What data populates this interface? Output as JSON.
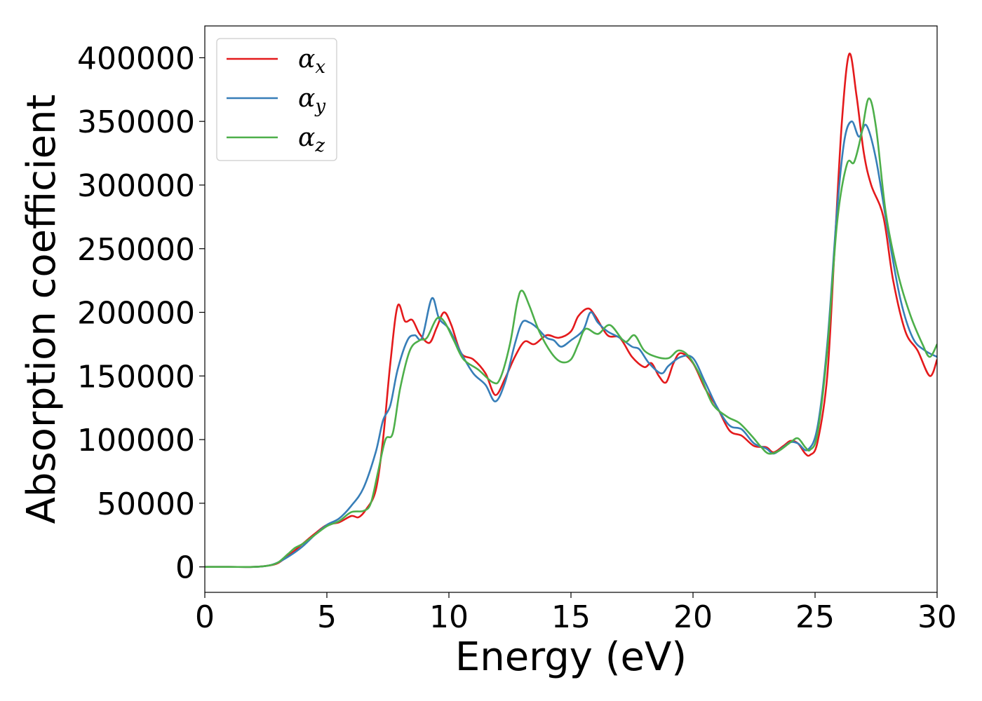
{
  "chart_data": {
    "type": "line",
    "title": "",
    "xlabel": "Energy (eV)",
    "ylabel": "Absorption coefficient",
    "xlim": [
      0,
      30
    ],
    "ylim": [
      -20000,
      425000
    ],
    "xticks": [
      0,
      5,
      10,
      15,
      20,
      25,
      30
    ],
    "yticks": [
      0,
      50000,
      100000,
      150000,
      200000,
      250000,
      300000,
      350000,
      400000
    ],
    "grid": false,
    "legend_position": "top-left",
    "series": [
      {
        "name": "α",
        "subscript": "x",
        "color": "#e41a1c",
        "points": [
          [
            0,
            0
          ],
          [
            1,
            0
          ],
          [
            2,
            0
          ],
          [
            2.6,
            1000
          ],
          [
            3,
            3000
          ],
          [
            3.5,
            10000
          ],
          [
            4,
            18000
          ],
          [
            4.5,
            26000
          ],
          [
            5,
            33000
          ],
          [
            5.5,
            35000
          ],
          [
            6,
            40000
          ],
          [
            6.3,
            39000
          ],
          [
            6.6,
            45000
          ],
          [
            7,
            60000
          ],
          [
            7.3,
            100000
          ],
          [
            7.6,
            160000
          ],
          [
            7.9,
            205000
          ],
          [
            8.2,
            193000
          ],
          [
            8.5,
            194000
          ],
          [
            8.8,
            183000
          ],
          [
            9.2,
            176000
          ],
          [
            9.5,
            188000
          ],
          [
            9.8,
            200000
          ],
          [
            10.1,
            190000
          ],
          [
            10.5,
            168000
          ],
          [
            11,
            163000
          ],
          [
            11.5,
            152000
          ],
          [
            11.9,
            135000
          ],
          [
            12.3,
            148000
          ],
          [
            12.7,
            165000
          ],
          [
            13.1,
            177000
          ],
          [
            13.5,
            175000
          ],
          [
            14,
            182000
          ],
          [
            14.5,
            180000
          ],
          [
            15,
            185000
          ],
          [
            15.3,
            197000
          ],
          [
            15.7,
            203000
          ],
          [
            16,
            197000
          ],
          [
            16.5,
            182000
          ],
          [
            17,
            180000
          ],
          [
            17.5,
            165000
          ],
          [
            18,
            157000
          ],
          [
            18.3,
            160000
          ],
          [
            18.6,
            150000
          ],
          [
            18.9,
            145000
          ],
          [
            19.2,
            160000
          ],
          [
            19.5,
            168000
          ],
          [
            20,
            160000
          ],
          [
            20.5,
            140000
          ],
          [
            21,
            125000
          ],
          [
            21.5,
            107000
          ],
          [
            22,
            103000
          ],
          [
            22.5,
            95000
          ],
          [
            23,
            94000
          ],
          [
            23.3,
            90000
          ],
          [
            23.7,
            95000
          ],
          [
            24,
            99000
          ],
          [
            24.3,
            97000
          ],
          [
            24.6,
            89000
          ],
          [
            24.8,
            88000
          ],
          [
            25.1,
            98000
          ],
          [
            25.5,
            150000
          ],
          [
            25.8,
            250000
          ],
          [
            26.1,
            350000
          ],
          [
            26.4,
            403000
          ],
          [
            26.7,
            370000
          ],
          [
            27,
            325000
          ],
          [
            27.3,
            300000
          ],
          [
            27.8,
            275000
          ],
          [
            28.2,
            225000
          ],
          [
            28.7,
            185000
          ],
          [
            29.2,
            170000
          ],
          [
            29.7,
            150000
          ],
          [
            30,
            163000
          ]
        ]
      },
      {
        "name": "α",
        "subscript": "y",
        "color": "#377eb8",
        "points": [
          [
            0,
            0
          ],
          [
            1,
            0
          ],
          [
            2,
            0
          ],
          [
            2.6,
            1000
          ],
          [
            3,
            3500
          ],
          [
            3.5,
            9000
          ],
          [
            4,
            16000
          ],
          [
            4.5,
            25000
          ],
          [
            5,
            33000
          ],
          [
            5.5,
            38000
          ],
          [
            6,
            48000
          ],
          [
            6.5,
            62000
          ],
          [
            7,
            90000
          ],
          [
            7.3,
            115000
          ],
          [
            7.6,
            127000
          ],
          [
            7.9,
            155000
          ],
          [
            8.3,
            178000
          ],
          [
            8.6,
            182000
          ],
          [
            8.9,
            180000
          ],
          [
            9.3,
            211000
          ],
          [
            9.6,
            195000
          ],
          [
            10,
            187000
          ],
          [
            10.5,
            168000
          ],
          [
            11,
            152000
          ],
          [
            11.5,
            143000
          ],
          [
            11.9,
            130000
          ],
          [
            12.3,
            145000
          ],
          [
            12.7,
            175000
          ],
          [
            13,
            192000
          ],
          [
            13.3,
            192000
          ],
          [
            13.6,
            188000
          ],
          [
            14,
            180000
          ],
          [
            14.3,
            178000
          ],
          [
            14.6,
            173000
          ],
          [
            15,
            178000
          ],
          [
            15.5,
            186000
          ],
          [
            15.8,
            200000
          ],
          [
            16.1,
            192000
          ],
          [
            16.5,
            185000
          ],
          [
            17,
            180000
          ],
          [
            17.5,
            173000
          ],
          [
            17.8,
            171000
          ],
          [
            18.2,
            160000
          ],
          [
            18.7,
            152000
          ],
          [
            19,
            158000
          ],
          [
            19.5,
            165000
          ],
          [
            20,
            164000
          ],
          [
            20.5,
            145000
          ],
          [
            21,
            125000
          ],
          [
            21.5,
            111000
          ],
          [
            22,
            108000
          ],
          [
            22.5,
            97000
          ],
          [
            23,
            93000
          ],
          [
            23.3,
            89000
          ],
          [
            23.7,
            94000
          ],
          [
            24,
            98000
          ],
          [
            24.3,
            97000
          ],
          [
            24.7,
            92000
          ],
          [
            25.1,
            110000
          ],
          [
            25.5,
            175000
          ],
          [
            25.9,
            280000
          ],
          [
            26.2,
            335000
          ],
          [
            26.5,
            350000
          ],
          [
            26.8,
            338000
          ],
          [
            27.1,
            347000
          ],
          [
            27.5,
            320000
          ],
          [
            28,
            262000
          ],
          [
            28.5,
            210000
          ],
          [
            29,
            180000
          ],
          [
            29.5,
            170000
          ],
          [
            30,
            165000
          ]
        ]
      },
      {
        "name": "α",
        "subscript": "z",
        "color": "#4daf4a",
        "points": [
          [
            0,
            0
          ],
          [
            1,
            0
          ],
          [
            2,
            0
          ],
          [
            2.6,
            1000
          ],
          [
            3,
            3500
          ],
          [
            3.4,
            10000
          ],
          [
            3.7,
            15000
          ],
          [
            4,
            18000
          ],
          [
            4.5,
            25000
          ],
          [
            5,
            32000
          ],
          [
            5.5,
            36000
          ],
          [
            6,
            43000
          ],
          [
            6.5,
            44000
          ],
          [
            6.8,
            50000
          ],
          [
            7.1,
            75000
          ],
          [
            7.4,
            100000
          ],
          [
            7.7,
            105000
          ],
          [
            8,
            140000
          ],
          [
            8.4,
            170000
          ],
          [
            8.8,
            178000
          ],
          [
            9.1,
            180000
          ],
          [
            9.5,
            195000
          ],
          [
            9.8,
            193000
          ],
          [
            10.2,
            178000
          ],
          [
            10.6,
            163000
          ],
          [
            11.2,
            155000
          ],
          [
            11.8,
            145000
          ],
          [
            12.1,
            148000
          ],
          [
            12.5,
            175000
          ],
          [
            12.8,
            208000
          ],
          [
            13,
            217000
          ],
          [
            13.3,
            205000
          ],
          [
            13.7,
            185000
          ],
          [
            14.2,
            168000
          ],
          [
            14.6,
            161000
          ],
          [
            15,
            163000
          ],
          [
            15.3,
            175000
          ],
          [
            15.6,
            187000
          ],
          [
            16.1,
            183000
          ],
          [
            16.6,
            190000
          ],
          [
            17.2,
            177000
          ],
          [
            17.6,
            182000
          ],
          [
            18,
            170000
          ],
          [
            18.5,
            165000
          ],
          [
            19,
            164000
          ],
          [
            19.4,
            170000
          ],
          [
            19.8,
            166000
          ],
          [
            20.3,
            150000
          ],
          [
            20.8,
            128000
          ],
          [
            21.4,
            118000
          ],
          [
            21.9,
            113000
          ],
          [
            22.4,
            103000
          ],
          [
            22.8,
            94000
          ],
          [
            23.1,
            89000
          ],
          [
            23.5,
            91000
          ],
          [
            24,
            98000
          ],
          [
            24.3,
            101000
          ],
          [
            24.6,
            94000
          ],
          [
            24.8,
            92000
          ],
          [
            25.1,
            105000
          ],
          [
            25.5,
            170000
          ],
          [
            25.9,
            270000
          ],
          [
            26.3,
            316000
          ],
          [
            26.6,
            318000
          ],
          [
            26.9,
            340000
          ],
          [
            27.2,
            368000
          ],
          [
            27.5,
            345000
          ],
          [
            27.9,
            278000
          ],
          [
            28.4,
            230000
          ],
          [
            28.9,
            198000
          ],
          [
            29.4,
            175000
          ],
          [
            29.7,
            165000
          ],
          [
            30,
            175000
          ]
        ]
      }
    ]
  }
}
